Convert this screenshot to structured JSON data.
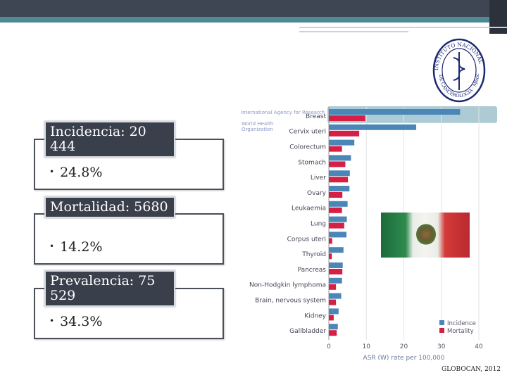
{
  "stats": [
    {
      "label": "Incidencia: 20 444",
      "pct": "24.8%"
    },
    {
      "label": "Mortalidad: 5680",
      "pct": "14.2%"
    },
    {
      "label": "Prevalencia: 75 529",
      "pct": "34.3%"
    }
  ],
  "agency_text": "International Agency for Research",
  "who_text": [
    "World Health",
    "Organization"
  ],
  "logo_text_top": "INSTITUTO NACIONAL",
  "logo_text_bottom": "DE CANCEROLOGIA · México",
  "source": "GLOBOCAN, 2012",
  "colors": {
    "incidence": "#4a86b8",
    "mortality": "#d61f45",
    "highlight": "#9fc2cc"
  },
  "chart_data": {
    "type": "bar",
    "orientation": "horizontal",
    "categories": [
      "Breast",
      "Cervix uteri",
      "Colorectum",
      "Stomach",
      "Liver",
      "Ovary",
      "Leukaemia",
      "Lung",
      "Corpus uteri",
      "Thyroid",
      "Pancreas",
      "Non-Hodgkin lymphoma",
      "Brain, nervous system",
      "Kidney",
      "Gallbladder"
    ],
    "series": [
      {
        "name": "Incidence",
        "values": [
          35,
          23.3,
          6.8,
          5.9,
          5.6,
          5.5,
          5.0,
          4.8,
          4.7,
          3.9,
          3.7,
          3.5,
          3.3,
          2.6,
          2.4
        ]
      },
      {
        "name": "Mortality",
        "values": [
          9.7,
          8.1,
          3.5,
          4.4,
          5.1,
          3.6,
          3.5,
          4.1,
          0.9,
          0.8,
          3.6,
          1.9,
          1.9,
          1.3,
          2.1
        ]
      }
    ],
    "xlabel": "ASR (W) rate per 100,000",
    "xticks": [
      0,
      10,
      20,
      30,
      40
    ],
    "xlim": [
      0,
      40
    ],
    "legend": "bottom-right",
    "grid": true,
    "highlight_category": "Breast"
  }
}
